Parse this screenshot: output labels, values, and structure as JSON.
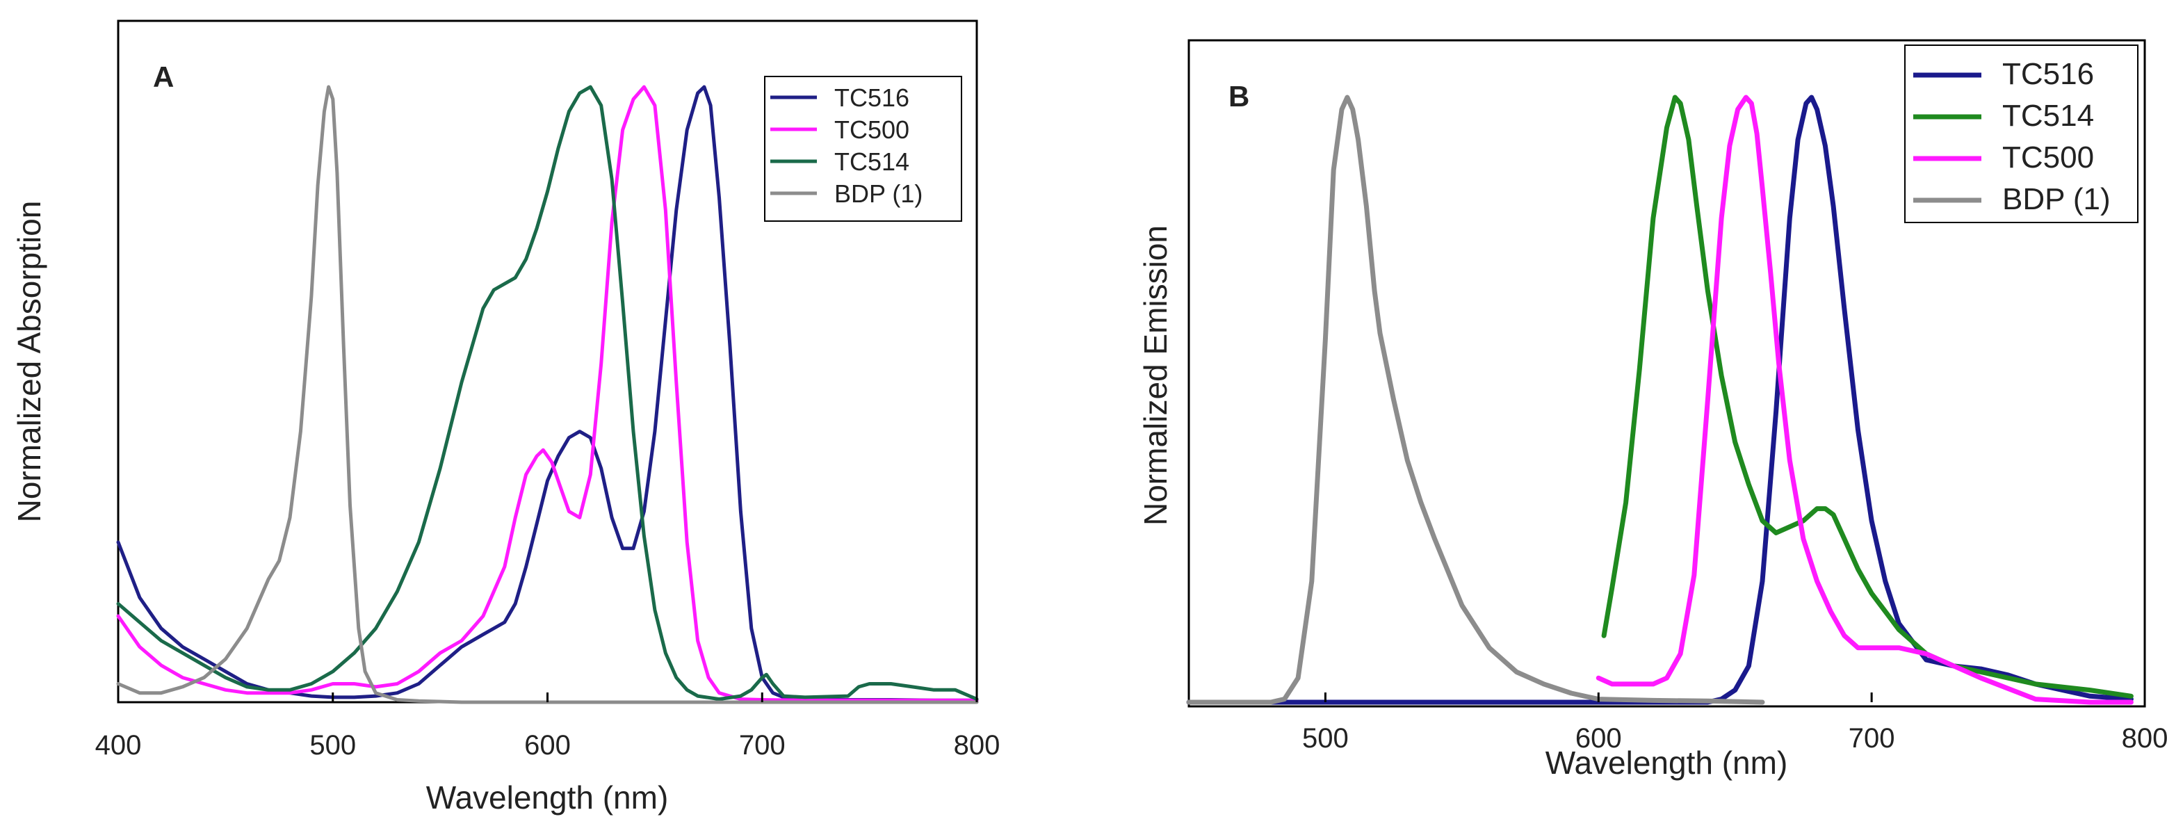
{
  "chart_data": [
    {
      "panel": "A",
      "type": "line",
      "title": "",
      "xlabel": "Wavelength (nm)",
      "ylabel": "Normalized Absorption",
      "xlim": [
        400,
        800
      ],
      "ylim": [
        0,
        1.0
      ],
      "xticks": [
        400,
        500,
        600,
        700,
        800
      ],
      "yticks": [],
      "grid": false,
      "legend_position": "top-right",
      "series": [
        {
          "name": "TC516",
          "color": "#1f1f86",
          "x": [
            400,
            410,
            420,
            430,
            440,
            450,
            460,
            470,
            480,
            490,
            500,
            510,
            520,
            530,
            540,
            550,
            560,
            570,
            580,
            585,
            590,
            595,
            600,
            605,
            610,
            615,
            620,
            625,
            630,
            635,
            640,
            645,
            650,
            655,
            660,
            665,
            670,
            673,
            676,
            680,
            685,
            690,
            695,
            700,
            705,
            710,
            720,
            740,
            760,
            780,
            800
          ],
          "y": [
            0.26,
            0.17,
            0.12,
            0.09,
            0.07,
            0.05,
            0.03,
            0.02,
            0.015,
            0.01,
            0.008,
            0.008,
            0.01,
            0.015,
            0.03,
            0.06,
            0.09,
            0.11,
            0.13,
            0.16,
            0.22,
            0.29,
            0.36,
            0.4,
            0.43,
            0.44,
            0.43,
            0.38,
            0.3,
            0.25,
            0.25,
            0.31,
            0.44,
            0.62,
            0.8,
            0.93,
            0.99,
            1.0,
            0.97,
            0.82,
            0.58,
            0.31,
            0.12,
            0.04,
            0.015,
            0.008,
            0.005,
            0.004,
            0.004,
            0.003,
            0.003
          ]
        },
        {
          "name": "TC500",
          "color": "#ff1aff",
          "x": [
            400,
            410,
            420,
            430,
            440,
            450,
            460,
            470,
            480,
            490,
            500,
            510,
            520,
            530,
            540,
            550,
            560,
            570,
            580,
            585,
            590,
            595,
            598,
            602,
            606,
            610,
            615,
            620,
            625,
            630,
            635,
            640,
            645,
            650,
            655,
            660,
            665,
            670,
            675,
            680,
            690,
            700,
            720,
            740,
            760,
            780,
            800
          ],
          "y": [
            0.14,
            0.09,
            0.06,
            0.04,
            0.03,
            0.02,
            0.015,
            0.015,
            0.015,
            0.02,
            0.03,
            0.03,
            0.025,
            0.03,
            0.05,
            0.08,
            0.1,
            0.14,
            0.22,
            0.3,
            0.37,
            0.4,
            0.41,
            0.39,
            0.35,
            0.31,
            0.3,
            0.37,
            0.55,
            0.78,
            0.93,
            0.98,
            1.0,
            0.97,
            0.8,
            0.52,
            0.26,
            0.1,
            0.04,
            0.015,
            0.005,
            0.004,
            0.003,
            0.003,
            0.003,
            0.003,
            0.003
          ]
        },
        {
          "name": "TC514",
          "color": "#1a6a4a",
          "x": [
            400,
            410,
            420,
            430,
            440,
            450,
            460,
            470,
            480,
            490,
            500,
            510,
            520,
            530,
            540,
            550,
            560,
            570,
            575,
            580,
            585,
            590,
            595,
            600,
            605,
            610,
            615,
            620,
            625,
            630,
            635,
            640,
            645,
            650,
            655,
            660,
            665,
            670,
            680,
            690,
            695,
            700,
            702,
            705,
            710,
            720,
            740,
            745,
            750,
            760,
            770,
            780,
            785,
            790,
            800
          ],
          "y": [
            0.16,
            0.13,
            0.1,
            0.08,
            0.06,
            0.04,
            0.025,
            0.02,
            0.02,
            0.03,
            0.05,
            0.08,
            0.12,
            0.18,
            0.26,
            0.38,
            0.52,
            0.64,
            0.67,
            0.68,
            0.69,
            0.72,
            0.77,
            0.83,
            0.9,
            0.96,
            0.99,
            1.0,
            0.97,
            0.85,
            0.65,
            0.44,
            0.27,
            0.15,
            0.08,
            0.04,
            0.02,
            0.01,
            0.005,
            0.01,
            0.02,
            0.04,
            0.045,
            0.03,
            0.01,
            0.008,
            0.01,
            0.025,
            0.03,
            0.03,
            0.025,
            0.02,
            0.02,
            0.02,
            0.005
          ]
        },
        {
          "name": "BDP (1)",
          "color": "#8c8c8c",
          "x": [
            400,
            410,
            420,
            430,
            440,
            450,
            460,
            465,
            470,
            475,
            480,
            485,
            490,
            493,
            496,
            498,
            500,
            502,
            505,
            508,
            512,
            515,
            520,
            530,
            540,
            560,
            600,
            700,
            800
          ],
          "y": [
            0.03,
            0.015,
            0.015,
            0.025,
            0.04,
            0.07,
            0.12,
            0.16,
            0.2,
            0.23,
            0.3,
            0.44,
            0.66,
            0.84,
            0.96,
            1.0,
            0.98,
            0.86,
            0.58,
            0.32,
            0.12,
            0.05,
            0.015,
            0.004,
            0.002,
            0.0,
            0.0,
            0.0,
            0.0
          ]
        }
      ]
    },
    {
      "panel": "B",
      "type": "line",
      "title": "",
      "xlabel": "Wavelength (nm)",
      "ylabel": "Normalized Emission",
      "xlim": [
        450,
        800
      ],
      "ylim": [
        0,
        1.0
      ],
      "xticks": [
        500,
        600,
        700,
        800
      ],
      "yticks": [],
      "grid": false,
      "legend_position": "top-right",
      "series": [
        {
          "name": "TC516",
          "color": "#1a1a8c",
          "x": [
            450,
            500,
            550,
            600,
            630,
            640,
            645,
            650,
            655,
            660,
            665,
            670,
            673,
            676,
            678,
            680,
            683,
            686,
            690,
            695,
            700,
            705,
            710,
            720,
            730,
            740,
            750,
            760,
            780,
            795
          ],
          "y": [
            0.0,
            0.0,
            0.0,
            0.0,
            0.0,
            0.0,
            0.005,
            0.02,
            0.06,
            0.2,
            0.48,
            0.8,
            0.93,
            0.99,
            1.0,
            0.98,
            0.92,
            0.82,
            0.65,
            0.45,
            0.3,
            0.2,
            0.13,
            0.07,
            0.06,
            0.055,
            0.045,
            0.03,
            0.01,
            0.005
          ]
        },
        {
          "name": "TC514",
          "color": "#1f8a1f",
          "x": [
            602,
            605,
            610,
            615,
            620,
            625,
            628,
            630,
            633,
            636,
            640,
            645,
            650,
            655,
            660,
            665,
            670,
            675,
            680,
            683,
            686,
            690,
            695,
            700,
            705,
            710,
            720,
            730,
            740,
            750,
            760,
            780,
            795
          ],
          "y": [
            0.11,
            0.19,
            0.33,
            0.55,
            0.8,
            0.95,
            1.0,
            0.99,
            0.93,
            0.82,
            0.68,
            0.54,
            0.43,
            0.36,
            0.3,
            0.28,
            0.29,
            0.3,
            0.32,
            0.32,
            0.31,
            0.27,
            0.22,
            0.18,
            0.15,
            0.12,
            0.08,
            0.06,
            0.05,
            0.04,
            0.03,
            0.02,
            0.01
          ]
        },
        {
          "name": "TC500",
          "color": "#ff1aff",
          "x": [
            600,
            605,
            610,
            615,
            620,
            625,
            630,
            635,
            640,
            645,
            648,
            651,
            654,
            656,
            658,
            660,
            663,
            666,
            670,
            675,
            680,
            685,
            690,
            695,
            700,
            710,
            720,
            740,
            760,
            780,
            795
          ],
          "y": [
            0.04,
            0.03,
            0.03,
            0.03,
            0.03,
            0.04,
            0.08,
            0.21,
            0.5,
            0.8,
            0.92,
            0.98,
            1.0,
            0.99,
            0.94,
            0.85,
            0.71,
            0.56,
            0.4,
            0.27,
            0.2,
            0.15,
            0.11,
            0.09,
            0.09,
            0.09,
            0.08,
            0.04,
            0.005,
            0.0,
            0.0
          ]
        },
        {
          "name": "BDP (1)",
          "color": "#8c8c8c",
          "x": [
            450,
            480,
            485,
            490,
            495,
            500,
            503,
            506,
            508,
            510,
            512,
            515,
            518,
            520,
            525,
            530,
            535,
            540,
            550,
            560,
            570,
            580,
            590,
            600,
            620,
            640,
            660
          ],
          "y": [
            0.0,
            0.0,
            0.005,
            0.04,
            0.2,
            0.6,
            0.88,
            0.98,
            1.0,
            0.98,
            0.93,
            0.82,
            0.68,
            0.61,
            0.5,
            0.4,
            0.33,
            0.27,
            0.16,
            0.09,
            0.05,
            0.03,
            0.015,
            0.005,
            0.003,
            0.002,
            0.0
          ]
        }
      ]
    }
  ]
}
